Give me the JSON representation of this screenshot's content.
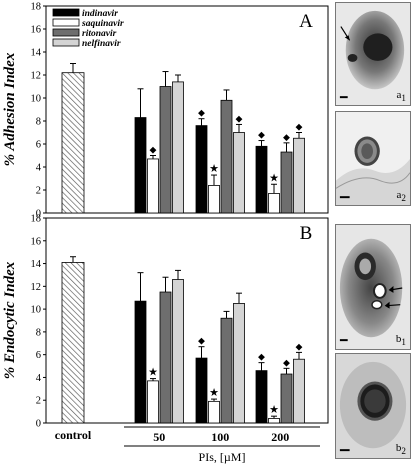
{
  "chart_data": [
    {
      "type": "bar",
      "panel_label": "A",
      "ylabel": "% Adhesion Index",
      "ylim": [
        0,
        18
      ],
      "yticks": [
        0,
        2,
        4,
        6,
        8,
        10,
        12,
        14,
        16,
        18
      ],
      "control": {
        "label": "control",
        "value": 12.2,
        "error": 0.8
      },
      "categories": [
        "50",
        "100",
        "200"
      ],
      "series": [
        {
          "name": "indinavir",
          "values": [
            8.3,
            7.6,
            5.8
          ],
          "errors": [
            2.5,
            0.6,
            0.5
          ],
          "markers": [
            "",
            "◆",
            "◆"
          ]
        },
        {
          "name": "saquinavir",
          "values": [
            4.7,
            2.4,
            1.7
          ],
          "errors": [
            0.3,
            0.9,
            0.8
          ],
          "markers": [
            "◆",
            "★",
            "★"
          ]
        },
        {
          "name": "ritonavir",
          "values": [
            11.0,
            9.8,
            5.3
          ],
          "errors": [
            1.3,
            0.9,
            0.8
          ],
          "markers": [
            "",
            "",
            "◆"
          ]
        },
        {
          "name": "nelfinavir",
          "values": [
            11.4,
            7.0,
            6.5
          ],
          "errors": [
            0.6,
            0.7,
            0.5
          ],
          "markers": [
            "",
            "◆",
            "◆"
          ]
        }
      ],
      "legend": "top-left",
      "grid": false
    },
    {
      "type": "bar",
      "panel_label": "B",
      "ylabel": "% Endocytic Index",
      "ylim": [
        0,
        18
      ],
      "yticks": [
        0,
        2,
        4,
        6,
        8,
        10,
        12,
        14,
        16,
        18
      ],
      "control": {
        "label": "control",
        "value": 14.1,
        "error": 0.5
      },
      "categories": [
        "50",
        "100",
        "200"
      ],
      "series": [
        {
          "name": "indinavir",
          "values": [
            10.7,
            5.7,
            4.6
          ],
          "errors": [
            2.5,
            1.0,
            0.7
          ],
          "markers": [
            "",
            "◆",
            "◆"
          ]
        },
        {
          "name": "saquinavir",
          "values": [
            3.7,
            1.9,
            0.4
          ],
          "errors": [
            0.2,
            0.2,
            0.2
          ],
          "markers": [
            "★",
            "★",
            "★"
          ]
        },
        {
          "name": "ritonavir",
          "values": [
            11.5,
            9.2,
            4.3
          ],
          "errors": [
            1.3,
            0.6,
            0.5
          ],
          "markers": [
            "",
            "",
            "◆"
          ]
        },
        {
          "name": "nelfinavir",
          "values": [
            12.6,
            10.5,
            5.6
          ],
          "errors": [
            0.8,
            0.9,
            0.6
          ],
          "markers": [
            "",
            "",
            "◆"
          ]
        }
      ],
      "xlabel": "PIs, [µM]",
      "legend": "none",
      "grid": false
    }
  ],
  "colors": {
    "indinavir": "#000000",
    "saquinavir": "#ffffff",
    "ritonavir": "#6e6e6e",
    "nelfinavir": "#d4d4d4",
    "control_fill": "#ffffff",
    "control_hatch": "#555555"
  },
  "micrographs": [
    {
      "label": "a",
      "sub": "1"
    },
    {
      "label": "a",
      "sub": "2"
    },
    {
      "label": "b",
      "sub": "1"
    },
    {
      "label": "b",
      "sub": "2"
    }
  ]
}
